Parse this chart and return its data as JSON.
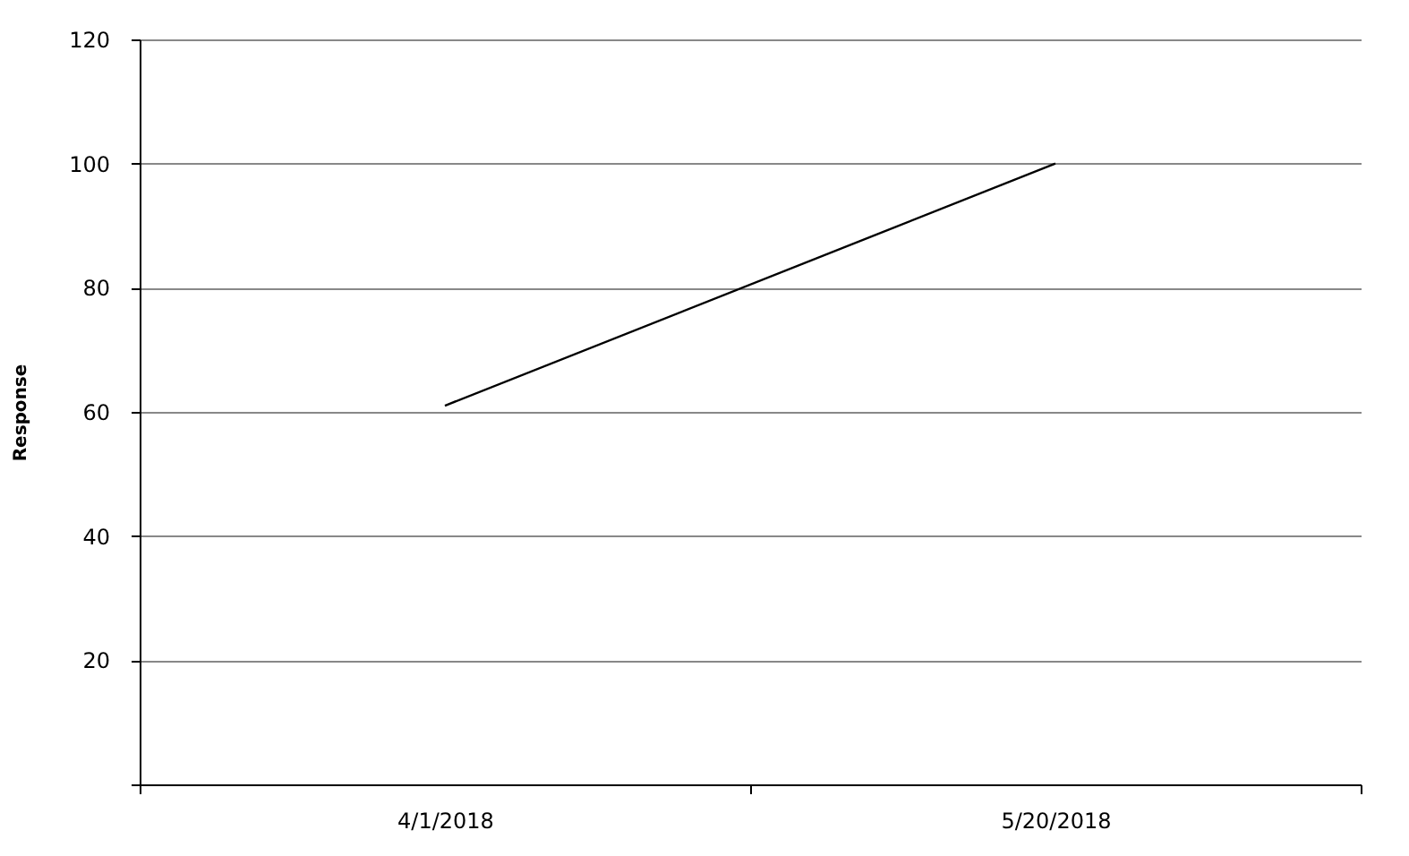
{
  "chart_data": {
    "type": "line",
    "ylabel": "Response",
    "categories": [
      "4/1/2018",
      "5/20/2018"
    ],
    "series": [
      {
        "color": "#000000",
        "values": [
          61,
          100
        ]
      }
    ],
    "ylim": [
      0,
      120
    ],
    "yticks": [
      {
        "value": 0,
        "label": null
      },
      20,
      40,
      60,
      80,
      100,
      120
    ],
    "grid": "y",
    "marker": "none",
    "line_style": "solid"
  }
}
